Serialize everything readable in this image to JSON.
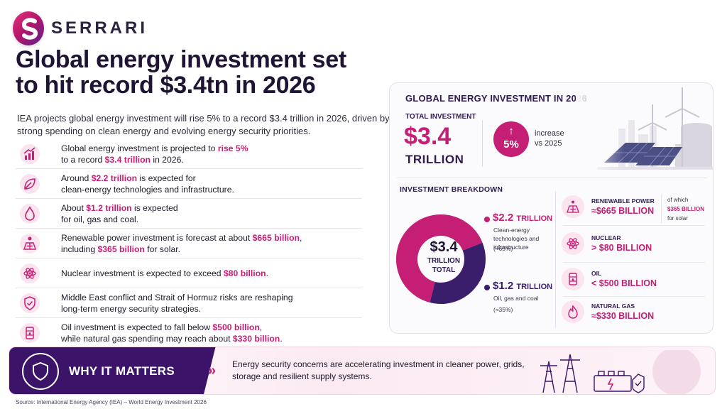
{
  "brand": {
    "name": "SERRARI"
  },
  "title": "Global energy investment set to hit record $3.4tn in 2026",
  "subtitle": "IEA projects global energy investment will rise 5% to a record $3.4 trillion in 2026, driven by strong spending on clean energy and evolving energy security priorities.",
  "facts": [
    {
      "icon": "growth-chart-icon",
      "parts": [
        [
          "Global energy investment is projected to ",
          false
        ],
        [
          "rise 5%",
          true
        ],
        [
          " to a record ",
          false
        ],
        [
          "$3.4 trillion",
          true
        ],
        [
          " in 2026.",
          false
        ]
      ],
      "break_after": 1
    },
    {
      "icon": "leaf-icon",
      "parts": [
        [
          "Around ",
          false
        ],
        [
          "$2.2 trillion",
          true
        ],
        [
          " is expected for",
          false
        ],
        [
          "clean-energy technologies and infrastructure.",
          false
        ]
      ],
      "break_after": 2
    },
    {
      "icon": "oil-drop-icon",
      "parts": [
        [
          "About ",
          false
        ],
        [
          "$1.2 trillion",
          true
        ],
        [
          " is expected",
          false
        ],
        [
          "for oil, gas and coal.",
          false
        ]
      ],
      "break_after": 2
    },
    {
      "icon": "solar-panel-icon",
      "parts": [
        [
          "Renewable power investment is forecast at about ",
          false
        ],
        [
          "$665 billion",
          true
        ],
        [
          ",",
          false
        ],
        [
          "including ",
          false
        ],
        [
          "$365 billion",
          true
        ],
        [
          " for solar.",
          false
        ]
      ],
      "break_after": 2
    },
    {
      "icon": "atom-icon",
      "parts": [
        [
          "Nuclear investment is expected to exceed ",
          false
        ],
        [
          "$80 billion",
          true
        ],
        [
          ".",
          false
        ]
      ],
      "break_after": -1
    },
    {
      "icon": "shield-check-icon",
      "parts": [
        [
          "Middle East conflict and Strait of Hormuz risks are reshaping",
          false
        ],
        [
          "long-term energy security strategies.",
          false
        ]
      ],
      "break_after": 0
    },
    {
      "icon": "oil-barrel-icon",
      "parts": [
        [
          "Oil investment is expected to fall below ",
          false
        ],
        [
          "$500 billion",
          true
        ],
        [
          ",",
          false
        ],
        [
          "while natural gas spending may reach about ",
          false
        ],
        [
          "$330 billion",
          true
        ],
        [
          ".",
          false
        ]
      ],
      "break_after": 2
    }
  ],
  "panel": {
    "title": "GLOBAL ENERGY INVESTMENT IN 2026",
    "total_label": "TOTAL INVESTMENT",
    "total_value": "$3.4",
    "total_unit": "TRILLION",
    "increase_arrow": "↑",
    "increase_pct": "5%",
    "increase_text_1": "increase",
    "increase_text_2": "vs 2025",
    "breakdown_title": "INVESTMENT BREAKDOWN",
    "donut_center_value": "$3.4",
    "donut_center_unit_1": "TRILLION",
    "donut_center_unit_2": "TOTAL",
    "segments": [
      {
        "value": "$2.2",
        "unit": "TRILLION",
        "desc": "Clean-energy technologies and infrastructure",
        "pct_text": "(≈65%)",
        "share": 65,
        "color": "#c41f74"
      },
      {
        "value": "$1.2",
        "unit": "TRILLION",
        "desc": "Oil, gas and coal",
        "pct_text": "(≈35%)",
        "share": 35,
        "color": "#3a1e6b"
      }
    ],
    "categories": [
      {
        "icon": "solar-panel-icon",
        "name": "RENEWABLE POWER",
        "value": "≈$665 BILLION"
      },
      {
        "icon": "atom-icon",
        "name": "NUCLEAR",
        "value": "> $80 BILLION"
      },
      {
        "icon": "oil-barrel-icon",
        "name": "OIL",
        "value": "< $500 BILLION"
      },
      {
        "icon": "flame-icon",
        "name": "NATURAL GAS",
        "value": "≈$330 BILLION"
      }
    ],
    "solar_note": {
      "pre": "of which",
      "value": "$365 BILLION",
      "post": "for solar"
    }
  },
  "banner": {
    "label": "WHY IT MATTERS",
    "chevron": "»",
    "text": "Energy security concerns are accelerating investment in cleaner power, grids, storage and resilient supply systems."
  },
  "source": "Source: International Energy Agency (IEA) – World Energy Investment 2026",
  "colors": {
    "accent": "#c41f74",
    "deep_purple": "#3b1469",
    "ink": "#1f1433"
  }
}
